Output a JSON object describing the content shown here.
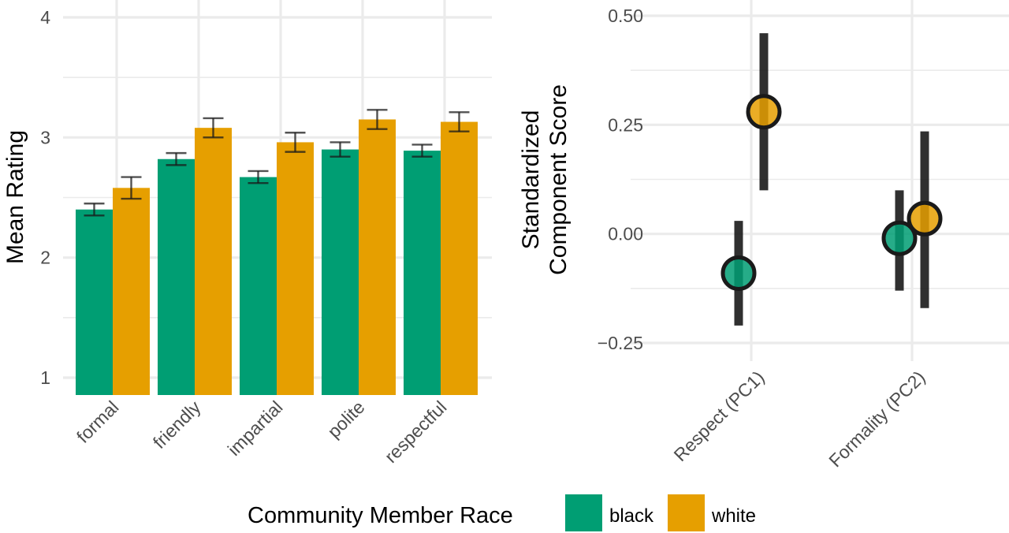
{
  "colors": {
    "black": "#009E73",
    "white": "#E69F00",
    "errorbar": "#1a1a1a"
  },
  "chart_data": [
    {
      "type": "bar",
      "xlabel": "",
      "ylabel": "Mean Rating",
      "ylim": [
        1,
        4
      ],
      "yticks": [
        "1",
        "2",
        "3",
        "4"
      ],
      "grid": true,
      "categories": [
        "formal",
        "friendly",
        "impartial",
        "polite",
        "respectful"
      ],
      "series": [
        {
          "name": "black",
          "values": [
            2.4,
            2.82,
            2.67,
            2.9,
            2.89
          ],
          "err": [
            0.05,
            0.05,
            0.05,
            0.06,
            0.05
          ]
        },
        {
          "name": "white",
          "values": [
            2.58,
            3.08,
            2.96,
            3.15,
            3.13
          ],
          "err": [
            0.09,
            0.08,
            0.08,
            0.08,
            0.08
          ]
        }
      ]
    },
    {
      "type": "scatter",
      "xlabel": "",
      "ylabel": [
        "Standardized",
        "Component Score"
      ],
      "ylim": [
        -0.25,
        0.5
      ],
      "yticks": [
        "−0.25",
        "0.00",
        "0.25",
        "0.50"
      ],
      "grid": true,
      "categories": [
        "Respect (PC1)",
        "Formality (PC2)"
      ],
      "series": [
        {
          "name": "black",
          "values": [
            -0.09,
            -0.01
          ],
          "lower": [
            -0.21,
            -0.13
          ],
          "upper": [
            0.03,
            0.1
          ]
        },
        {
          "name": "white",
          "values": [
            0.28,
            0.035
          ],
          "lower": [
            0.1,
            -0.17
          ],
          "upper": [
            0.46,
            0.235
          ]
        }
      ]
    }
  ],
  "legend": {
    "title": "Community Member Race",
    "items": [
      {
        "label": "black",
        "color": "#009E73"
      },
      {
        "label": "white",
        "color": "#E69F00"
      }
    ]
  }
}
